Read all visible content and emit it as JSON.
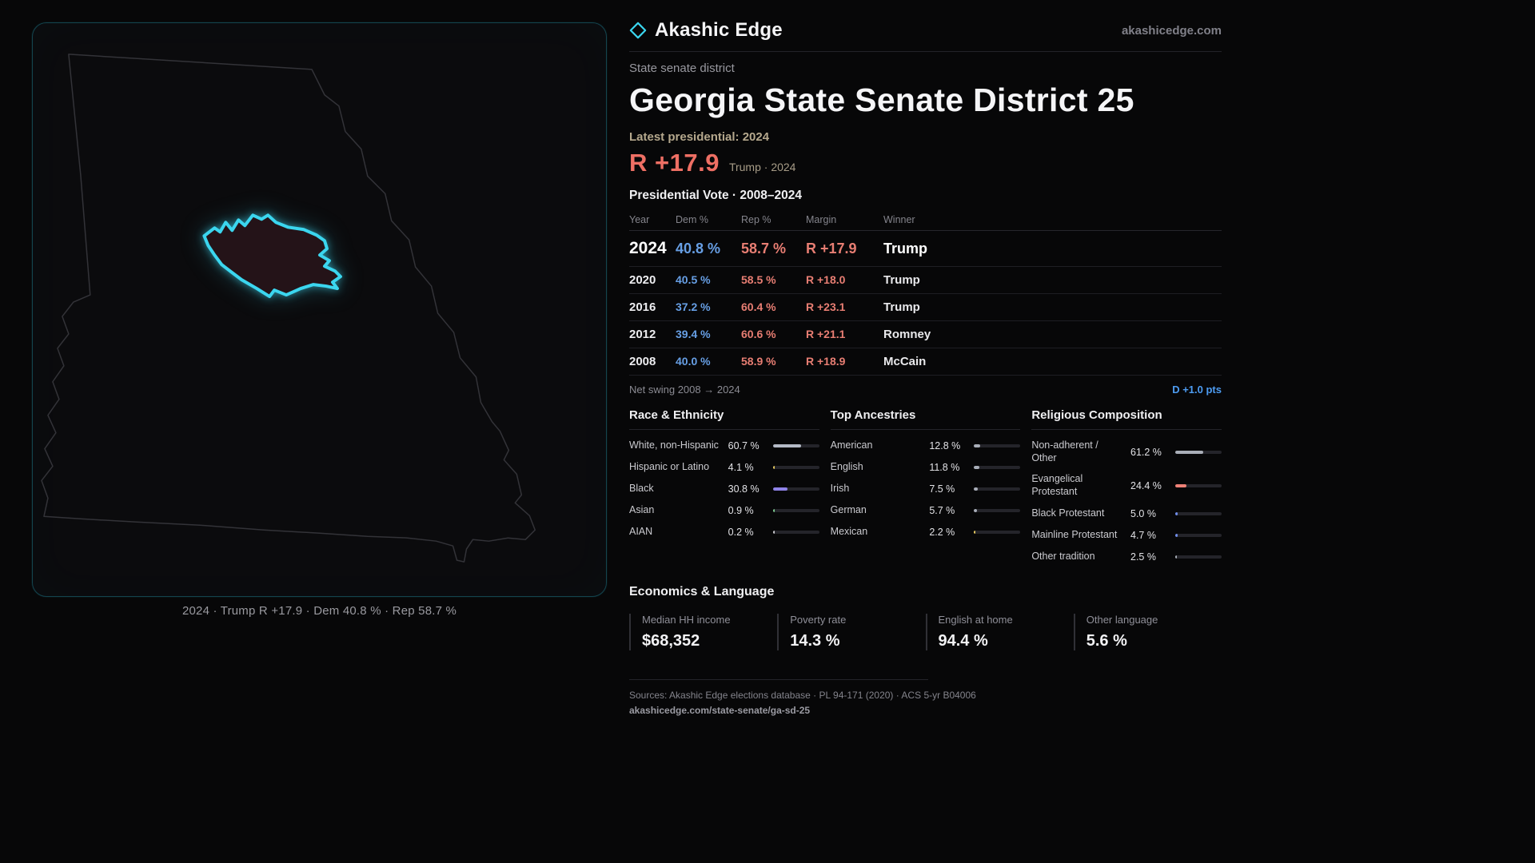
{
  "theme": {
    "background": "#070708",
    "accent_cyan": "#3bd6ef",
    "dem_blue": "#679fe5",
    "rep_red": "#ee6f64",
    "swing_blue": "#4d9cf2"
  },
  "icons": {
    "logo": "diamond-outline-icon"
  },
  "header": {
    "brand": "Akashic Edge",
    "site": "akashicedge.com"
  },
  "map": {
    "caption": "2024 · Trump R +17.9 · Dem 40.8 % · Rep 58.7 %"
  },
  "profile": {
    "kicker": "State senate district",
    "title": "Georgia State Senate District 25",
    "latest_label": "Latest presidential: 2024",
    "margin_big": "R +17.9",
    "margin_sub": "Trump · 2024"
  },
  "vote_table": {
    "title": "Presidential Vote · 2008–2024",
    "headers": [
      "Year",
      "Dem %",
      "Rep %",
      "Margin",
      "Winner"
    ],
    "rows": [
      {
        "year": "2024",
        "dem": "40.8 %",
        "rep": "58.7 %",
        "margin": "R +17.9",
        "winner": "Trump"
      },
      {
        "year": "2020",
        "dem": "40.5 %",
        "rep": "58.5 %",
        "margin": "R +18.0",
        "winner": "Trump"
      },
      {
        "year": "2016",
        "dem": "37.2 %",
        "rep": "60.4 %",
        "margin": "R +23.1",
        "winner": "Trump"
      },
      {
        "year": "2012",
        "dem": "39.4 %",
        "rep": "60.6 %",
        "margin": "R +21.1",
        "winner": "Romney"
      },
      {
        "year": "2008",
        "dem": "40.0 %",
        "rep": "58.9 %",
        "margin": "R +18.9",
        "winner": "McCain"
      }
    ],
    "net_swing_label": "Net swing 2008 → 2024",
    "net_swing_value": "D +1.0 pts"
  },
  "demographics": {
    "race": {
      "title": "Race & Ethnicity",
      "items": [
        {
          "label": "White, non-Hispanic",
          "value": "60.7 %",
          "pct": 60.7,
          "color": "#b4bac6"
        },
        {
          "label": "Hispanic or Latino",
          "value": "4.1 %",
          "pct": 4.1,
          "color": "#e4c85e"
        },
        {
          "label": "Black",
          "value": "30.8 %",
          "pct": 30.8,
          "color": "#8f83e8"
        },
        {
          "label": "Asian",
          "value": "0.9 %",
          "pct": 0.9,
          "color": "#7bc98d"
        },
        {
          "label": "AIAN",
          "value": "0.2 %",
          "pct": 0.2,
          "color": "#c9c9ce"
        }
      ]
    },
    "ancestries": {
      "title": "Top Ancestries",
      "items": [
        {
          "label": "American",
          "value": "12.8 %",
          "pct": 12.8,
          "color": "#a8adb8"
        },
        {
          "label": "English",
          "value": "11.8 %",
          "pct": 11.8,
          "color": "#a8adb8"
        },
        {
          "label": "Irish",
          "value": "7.5 %",
          "pct": 7.5,
          "color": "#a8adb8"
        },
        {
          "label": "German",
          "value": "5.7 %",
          "pct": 5.7,
          "color": "#a8adb8"
        },
        {
          "label": "Mexican",
          "value": "2.2 %",
          "pct": 2.2,
          "color": "#e4c85e"
        }
      ]
    },
    "religion": {
      "title": "Religious Composition",
      "items": [
        {
          "label": "Non-adherent / Other",
          "value": "61.2 %",
          "pct": 61.2,
          "color": "#a9aeb8"
        },
        {
          "label": "Evangelical Protestant",
          "value": "24.4 %",
          "pct": 24.4,
          "color": "#ee8177"
        },
        {
          "label": "Black Protestant",
          "value": "5.0 %",
          "pct": 5.0,
          "color": "#6f8ce8"
        },
        {
          "label": "Mainline Protestant",
          "value": "4.7 %",
          "pct": 4.7,
          "color": "#6f8ce8"
        },
        {
          "label": "Other tradition",
          "value": "2.5 %",
          "pct": 2.5,
          "color": "#a9aeb8"
        }
      ]
    }
  },
  "economics": {
    "title": "Economics & Language",
    "stats": [
      {
        "label": "Median HH income",
        "value": "$68,352"
      },
      {
        "label": "Poverty rate",
        "value": "14.3 %"
      },
      {
        "label": "English at home",
        "value": "94.4 %"
      },
      {
        "label": "Other language",
        "value": "5.6 %"
      }
    ]
  },
  "footer": {
    "sources": "Sources: Akashic Edge elections database · PL 94-171 (2020) · ACS 5-yr B04006",
    "permalink": "akashicedge.com/state-senate/ga-sd-25"
  }
}
